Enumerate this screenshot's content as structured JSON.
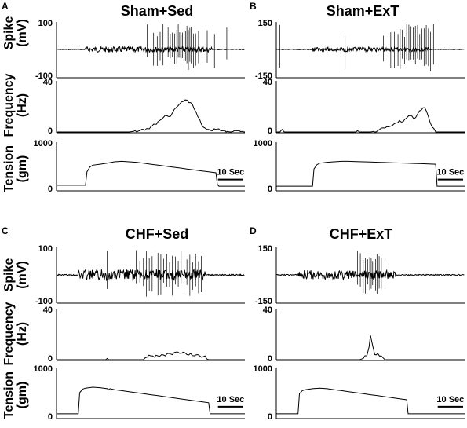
{
  "colors": {
    "trace": "#000000",
    "background": "#ffffff"
  },
  "scale_bar_label": "10 Sec",
  "chart_data": [
    {
      "type": "line",
      "panel": "A",
      "title": "Sham+Sed",
      "ylabels": {
        "spike": "Spike (mV)",
        "frequency": "Frequency (Hz)",
        "tension": "Tension (gm)"
      },
      "spike": {
        "ylim": [
          -100,
          100
        ],
        "tick_labels": [
          "100",
          "-100"
        ],
        "baseline": 0,
        "noise_window": [
          4,
          21.5
        ],
        "noise_amp": 10,
        "units": "mV",
        "spikes": [
          12.5,
          13.4,
          13.9,
          14.3,
          14.7,
          15.1,
          15.4,
          15.7,
          16.0,
          16.3,
          16.6,
          16.8,
          17.0,
          17.2,
          17.4,
          17.6,
          17.8,
          18.0,
          18.2,
          18.4,
          18.6,
          18.9,
          19.2,
          19.6,
          20.1,
          20.8,
          21.8,
          23.5
        ]
      },
      "frequency": {
        "ylim": [
          0,
          40
        ],
        "tick_labels": [
          "40",
          "0"
        ],
        "units": "Hz",
        "x": [
          0,
          10,
          11.5,
          12,
          13,
          14,
          14.5,
          15,
          15.5,
          16,
          16.5,
          17,
          17.5,
          18,
          18.5,
          19,
          19.5,
          20,
          20.5,
          21,
          21.5,
          22,
          23,
          24,
          25,
          26
        ],
        "y": [
          0,
          0,
          1,
          2,
          4,
          8,
          10,
          13,
          12,
          15,
          19,
          22,
          24,
          25,
          23,
          18,
          12,
          6,
          3,
          2,
          1,
          2,
          1,
          0,
          1,
          0
        ]
      },
      "tension": {
        "ylim": [
          0,
          1000
        ],
        "tick_labels": [
          "1000",
          "0"
        ],
        "units": "gm",
        "x": [
          0,
          4,
          4.2,
          4.6,
          5,
          6,
          7,
          8,
          9,
          10,
          11,
          12,
          13,
          14,
          15,
          16,
          17,
          18,
          19,
          20,
          21,
          22,
          22.2,
          22.4,
          26
        ],
        "y": [
          100,
          100,
          380,
          480,
          520,
          540,
          560,
          590,
          600,
          590,
          580,
          560,
          540,
          520,
          500,
          480,
          460,
          440,
          420,
          400,
          380,
          360,
          120,
          80,
          80
        ]
      }
    },
    {
      "type": "line",
      "panel": "B",
      "title": "Sham+ExT",
      "ylabels": {
        "spike": "Spike (mV)",
        "frequency": "Frequency (Hz)",
        "tension": "Tension (gm)"
      },
      "spike": {
        "ylim": [
          -150,
          150
        ],
        "tick_labels": [
          "150",
          "-150"
        ],
        "baseline": 0,
        "noise_window": [
          5,
          21
        ],
        "noise_amp": 12,
        "units": "mV",
        "spikes": [
          0.5,
          9.5,
          14.8,
          15.8,
          16.3,
          16.8,
          17.1,
          17.4,
          17.7,
          18.0,
          18.3,
          18.6,
          18.9,
          19.2,
          19.5,
          19.8,
          20.1,
          20.4,
          20.7,
          21.0,
          21.3,
          21.7
        ]
      },
      "frequency": {
        "ylim": [
          0,
          40
        ],
        "tick_labels": [
          "40",
          "0"
        ],
        "units": "Hz",
        "x": [
          0,
          0.5,
          0.8,
          1.1,
          11,
          11.2,
          11.5,
          13,
          14,
          14.5,
          15,
          15.5,
          16,
          16.5,
          17,
          17.5,
          18,
          18.5,
          19,
          19.5,
          20,
          20.5,
          21,
          21.5,
          22,
          26
        ],
        "y": [
          0,
          0,
          2,
          0,
          0,
          1,
          0,
          0,
          1,
          3,
          3,
          4,
          5,
          7,
          9,
          8,
          11,
          13,
          10,
          14,
          17,
          19,
          12,
          4,
          0,
          0
        ]
      },
      "tension": {
        "ylim": [
          0,
          1000
        ],
        "tick_labels": [
          "1000",
          "0"
        ],
        "units": "gm",
        "x": [
          0,
          5,
          5.2,
          5.6,
          6,
          7,
          8,
          9,
          10,
          11,
          12,
          13,
          14,
          15,
          16,
          17,
          18,
          19,
          20,
          21,
          22,
          22.2,
          26
        ],
        "y": [
          80,
          80,
          440,
          530,
          560,
          580,
          590,
          600,
          600,
          595,
          590,
          585,
          580,
          575,
          570,
          565,
          560,
          555,
          550,
          545,
          540,
          80,
          80
        ]
      }
    },
    {
      "type": "line",
      "panel": "C",
      "title": "CHF+Sed",
      "ylabels": {
        "spike": "Spike (mV)",
        "frequency": "Frequency (Hz)",
        "tension": "Tension (gm)"
      },
      "spike": {
        "ylim": [
          -100,
          100
        ],
        "tick_labels": [
          "100",
          "-100"
        ],
        "baseline": 0,
        "noise_window": [
          3,
          20.5
        ],
        "noise_amp": 20,
        "units": "mV",
        "spikes": [
          7.0,
          11.0,
          11.5,
          12.0,
          12.4,
          12.8,
          13.2,
          13.6,
          14.0,
          14.4,
          14.8,
          15.2,
          15.6,
          16.0,
          16.4,
          16.8,
          17.2,
          17.6,
          18.0,
          18.4,
          18.8,
          19.2,
          19.6,
          20.0
        ]
      },
      "frequency": {
        "ylim": [
          0,
          40
        ],
        "tick_labels": [
          "40",
          "0"
        ],
        "units": "Hz",
        "x": [
          0,
          6.8,
          7,
          7.2,
          12,
          12.5,
          13,
          13.5,
          14,
          14.5,
          15,
          15.5,
          16,
          16.5,
          17,
          17.5,
          18,
          18.5,
          19,
          19.5,
          20,
          20.5,
          21,
          26
        ],
        "y": [
          0,
          0,
          1,
          0,
          0,
          2,
          3,
          2,
          3,
          4,
          3,
          5,
          4,
          6,
          5,
          6,
          4,
          5,
          3,
          4,
          2,
          3,
          0,
          0
        ]
      },
      "tension": {
        "ylim": [
          0,
          1000
        ],
        "tick_labels": [
          "1000",
          "0"
        ],
        "units": "gm",
        "x": [
          0,
          3,
          3.2,
          3.6,
          4,
          5,
          6,
          7,
          7.2,
          7.4,
          8,
          9,
          10,
          11,
          12,
          13,
          14,
          15,
          16,
          17,
          18,
          19,
          20,
          21,
          21.2,
          26
        ],
        "y": [
          80,
          80,
          500,
          570,
          590,
          610,
          600,
          580,
          560,
          580,
          560,
          540,
          520,
          500,
          480,
          460,
          440,
          420,
          400,
          380,
          360,
          340,
          320,
          300,
          80,
          80
        ]
      }
    },
    {
      "type": "line",
      "panel": "D",
      "title": "CHF+ExT",
      "ylabels": {
        "spike": "Spike (mV)",
        "frequency": "Frequency (Hz)",
        "tension": "Tension (gm)"
      },
      "spike": {
        "ylim": [
          -150,
          150
        ],
        "tick_labels": [
          "150",
          "-150"
        ],
        "baseline": 0,
        "noise_window": [
          3,
          16.5
        ],
        "noise_amp": 25,
        "units": "mV",
        "spikes": [
          11.2,
          11.6,
          12.0,
          12.3,
          12.6,
          12.9,
          13.1,
          13.3,
          13.5,
          13.7,
          13.9,
          14.2,
          14.5,
          15.0
        ]
      },
      "frequency": {
        "ylim": [
          0,
          40
        ],
        "tick_labels": [
          "40",
          "0"
        ],
        "units": "Hz",
        "x": [
          0,
          11.5,
          12,
          12.5,
          12.8,
          13.0,
          13.3,
          13.6,
          14.0,
          14.5,
          15,
          26
        ],
        "y": [
          0,
          0,
          1,
          3,
          10,
          19,
          11,
          4,
          5,
          3,
          0,
          0
        ]
      },
      "tension": {
        "ylim": [
          0,
          1000
        ],
        "tick_labels": [
          "1000",
          "0"
        ],
        "units": "gm",
        "x": [
          0,
          3,
          3.2,
          3.6,
          4,
          5,
          6,
          7,
          8,
          9,
          10,
          11,
          12,
          13,
          14,
          15,
          16,
          17,
          18,
          18.2,
          26
        ],
        "y": [
          80,
          80,
          480,
          540,
          560,
          580,
          590,
          580,
          560,
          540,
          520,
          500,
          480,
          460,
          440,
          420,
          400,
          380,
          360,
          80,
          80
        ]
      }
    }
  ]
}
